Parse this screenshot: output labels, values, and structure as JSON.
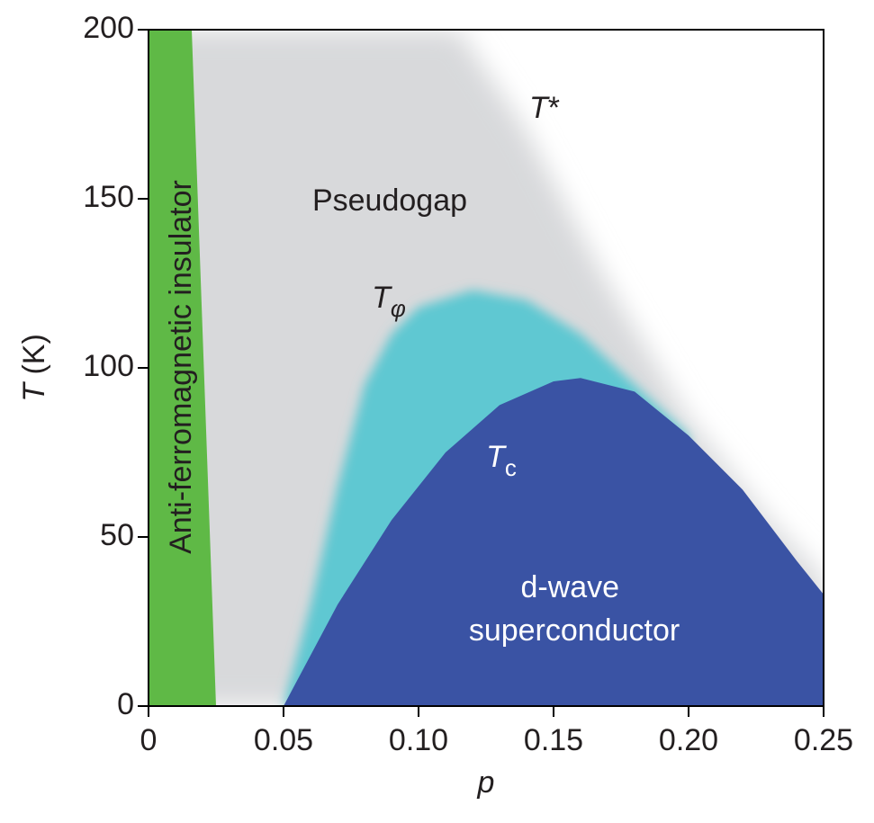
{
  "chart_data": {
    "type": "phase-diagram",
    "xlabel": "p",
    "ylabel": "T (K)",
    "xlim": [
      0,
      0.25
    ],
    "ylim": [
      0,
      200
    ],
    "xticks": [
      0,
      0.05,
      {
        "value": 0.1,
        "label": "0.10"
      },
      0.15,
      {
        "value": 0.2,
        "label": "0.20"
      },
      0.25
    ],
    "yticks": [
      0,
      50,
      100,
      150,
      200
    ],
    "curves": [
      {
        "label": "T*",
        "color": "#d8d9db",
        "x": [
          0.115,
          0.14,
          0.17,
          0.2,
          0.23,
          0.25
        ],
        "y": [
          200,
          170,
          125,
          85,
          55,
          38
        ]
      },
      {
        "label": "Tφ",
        "color": "#5ec8d2",
        "x": [
          0.05,
          0.06,
          0.07,
          0.08,
          0.09,
          0.1,
          0.12,
          0.14,
          0.16,
          0.18,
          0.2
        ],
        "y": [
          0,
          30,
          65,
          95,
          110,
          118,
          123,
          120,
          110,
          95,
          80
        ]
      },
      {
        "label": "Tc",
        "color": "#3a53a4",
        "x": [
          0.05,
          0.07,
          0.09,
          0.11,
          0.13,
          0.15,
          0.16,
          0.18,
          0.2,
          0.22,
          0.24,
          0.25
        ],
        "y": [
          0,
          30,
          55,
          75,
          89,
          96,
          97,
          93,
          80,
          64,
          43,
          33
        ]
      }
    ],
    "afm_boundary": {
      "color": "#5fb946",
      "x": [
        0.016,
        0.025
      ],
      "y": [
        200,
        0
      ]
    },
    "annotations": [
      "Anti-ferromagnetic insulator",
      "Pseudogap",
      "d-wave superconductor"
    ]
  }
}
